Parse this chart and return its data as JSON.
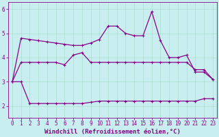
{
  "xlabel": "Windchill (Refroidissement éolien,°C)",
  "background_color": "#c8eef0",
  "grid_color": "#aaddcc",
  "line_color": "#880088",
  "xlim": [
    -0.5,
    23.5
  ],
  "ylim": [
    1.5,
    6.3
  ],
  "yticks": [
    2,
    3,
    4,
    5,
    6
  ],
  "xticks": [
    0,
    1,
    2,
    3,
    4,
    5,
    6,
    7,
    8,
    9,
    10,
    11,
    12,
    13,
    14,
    15,
    16,
    17,
    18,
    19,
    20,
    21,
    22,
    23
  ],
  "line1_x": [
    0,
    1,
    2,
    3,
    4,
    5,
    6,
    7,
    8,
    9,
    10,
    11,
    12,
    13,
    14,
    15,
    16,
    17,
    18,
    19,
    20,
    21,
    22,
    23
  ],
  "line1_y": [
    3.0,
    4.8,
    4.75,
    4.7,
    4.65,
    4.6,
    4.55,
    4.5,
    4.5,
    4.6,
    4.75,
    5.3,
    5.3,
    5.0,
    4.9,
    4.9,
    5.9,
    4.7,
    4.0,
    4.0,
    4.1,
    3.4,
    3.4,
    3.1
  ],
  "line2_x": [
    0,
    1,
    2,
    3,
    4,
    5,
    6,
    7,
    8,
    9,
    10,
    11,
    12,
    13,
    14,
    15,
    16,
    17,
    18,
    19,
    20,
    21,
    22,
    23
  ],
  "line2_y": [
    3.0,
    3.8,
    3.8,
    3.8,
    3.8,
    3.8,
    3.7,
    4.1,
    4.2,
    3.8,
    3.8,
    3.8,
    3.8,
    3.8,
    3.8,
    3.8,
    3.8,
    3.8,
    3.8,
    3.8,
    3.8,
    3.5,
    3.5,
    3.1
  ],
  "line3_x": [
    0,
    1,
    2,
    3,
    4,
    5,
    6,
    7,
    8,
    9,
    10,
    11,
    12,
    13,
    14,
    15,
    16,
    17,
    18,
    19,
    20,
    21,
    22,
    23
  ],
  "line3_y": [
    3.0,
    3.0,
    2.1,
    2.1,
    2.1,
    2.1,
    2.1,
    2.1,
    2.1,
    2.15,
    2.2,
    2.2,
    2.2,
    2.2,
    2.2,
    2.2,
    2.2,
    2.2,
    2.2,
    2.2,
    2.2,
    2.2,
    2.3,
    2.3
  ],
  "marker": "+",
  "markersize": 3,
  "linewidth": 0.9,
  "tick_fontsize": 5.5,
  "xlabel_fontsize": 6.5
}
